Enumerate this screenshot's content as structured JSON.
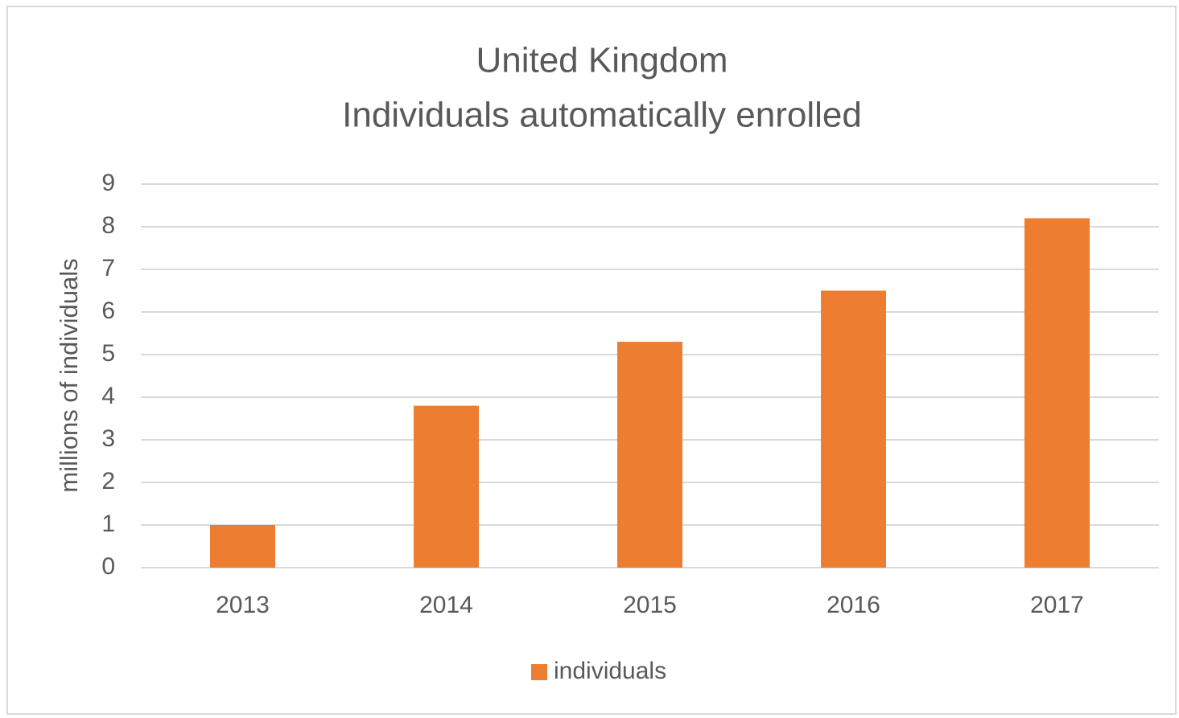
{
  "chart_data": {
    "type": "bar",
    "title": "United Kingdom",
    "subtitle": "Individuals automatically enrolled",
    "y_label": "millions of individuals",
    "categories": [
      "2013",
      "2014",
      "2015",
      "2016",
      "2017"
    ],
    "series": [
      {
        "name": "individuals",
        "color": "#ed7d31",
        "values": [
          1.0,
          3.8,
          5.3,
          6.5,
          8.2
        ]
      }
    ],
    "ylim": [
      0,
      9
    ],
    "yticks": [
      0,
      1,
      2,
      3,
      4,
      5,
      6,
      7,
      8,
      9
    ],
    "grid": true,
    "legend": "bottom"
  }
}
